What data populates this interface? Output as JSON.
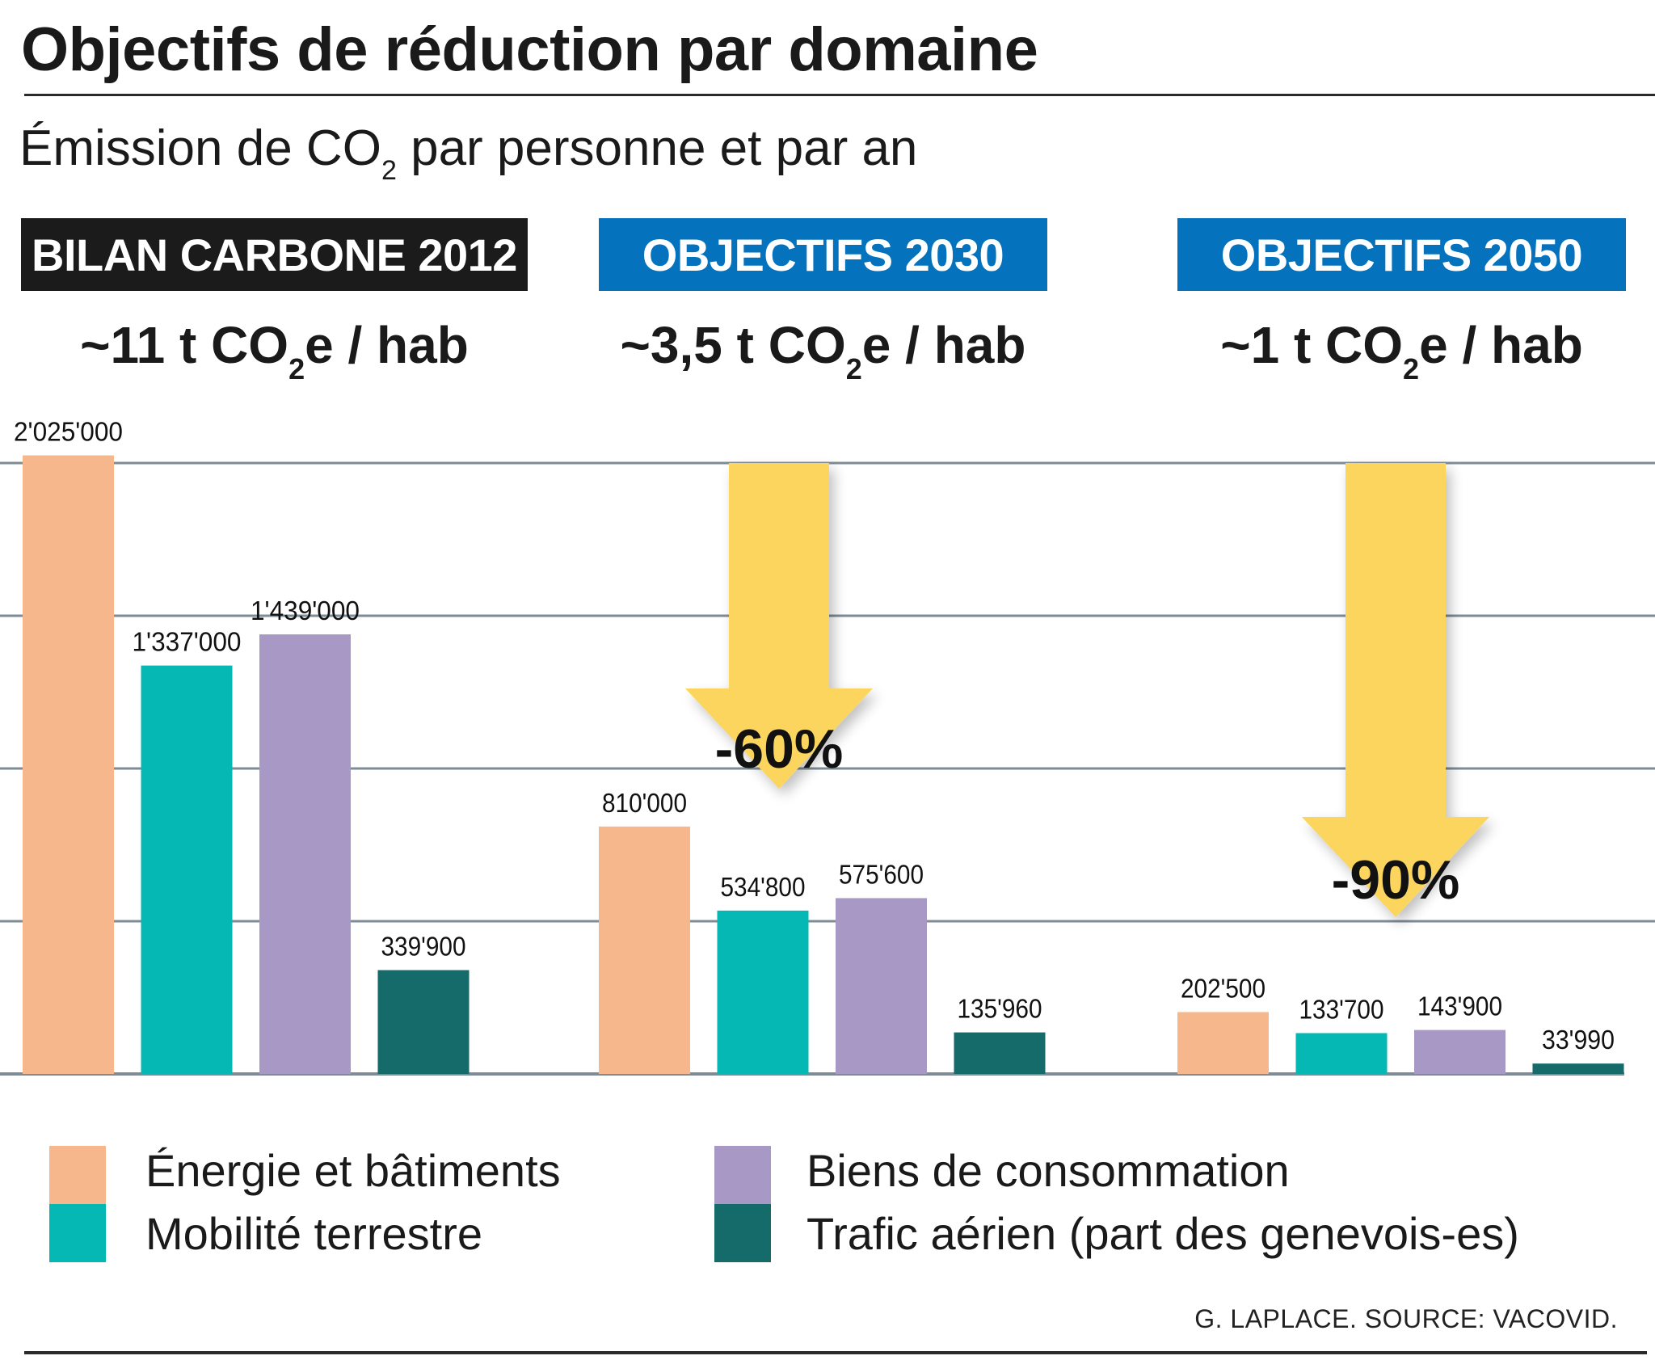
{
  "header": {
    "title": "Objectifs de réduction par domaine",
    "subtitle_pre": "Émission de CO",
    "subtitle_sub": "2",
    "subtitle_post": " par personne et par an"
  },
  "groups": [
    {
      "label": "BILAN CARBONE 2012",
      "per_capita_pre": "~11 t CO",
      "per_capita_sub": "2",
      "per_capita_post": "e / hab",
      "style_color": "#1c1b1c"
    },
    {
      "label": "OBJECTIFS 2030",
      "per_capita_pre": "~3,5 t CO",
      "per_capita_sub": "2",
      "per_capita_post": "e / hab",
      "style_color": "#0572bd"
    },
    {
      "label": "OBJECTIFS 2050",
      "per_capita_pre": "~1 t CO",
      "per_capita_sub": "2",
      "per_capita_post": "e / hab",
      "style_color": "#0572bd"
    }
  ],
  "credit": "G. LAPLACE. SOURCE: VACOVID.",
  "chart_data": {
    "type": "bar",
    "title": "Objectifs de réduction par domaine",
    "subtitle": "Émission de CO2 par personne et par an",
    "categories": [
      "BILAN CARBONE 2012",
      "OBJECTIFS 2030",
      "OBJECTIFS 2050"
    ],
    "series": [
      {
        "name": "Énergie et bâtiments",
        "color": "#f6b78c",
        "values": [
          2025000,
          810000,
          202500
        ],
        "labels": [
          "2'025'000",
          "810'000",
          "202'500"
        ]
      },
      {
        "name": "Mobilité terrestre",
        "color": "#05b8b4",
        "values": [
          1337000,
          534800,
          133700
        ],
        "labels": [
          "1'337'000",
          "534'800",
          "133'700"
        ]
      },
      {
        "name": "Biens de consommation",
        "color": "#a898c6",
        "values": [
          1439000,
          575600,
          143900
        ],
        "labels": [
          "1'439'000",
          "575'600",
          "143'900"
        ]
      },
      {
        "name": "Trafic aérien (part des genevois-es)",
        "color": "#156a6a",
        "values": [
          339900,
          135960,
          33990
        ],
        "labels": [
          "339'900",
          "135'960",
          "33'990"
        ]
      }
    ],
    "annotations": [
      {
        "group": "OBJECTIFS 2030",
        "text": "-60%",
        "type": "down-arrow"
      },
      {
        "group": "OBJECTIFS 2050",
        "text": "-90%",
        "type": "down-arrow"
      }
    ],
    "ylim": [
      0,
      2000000
    ],
    "gridlines": [
      500000,
      1000000,
      1500000,
      2000000
    ],
    "grid": true,
    "yaxis_labels_visible": false,
    "legend": "bottom",
    "arrow_color": "#fcd55f",
    "grid_color": "#7f8c96"
  }
}
